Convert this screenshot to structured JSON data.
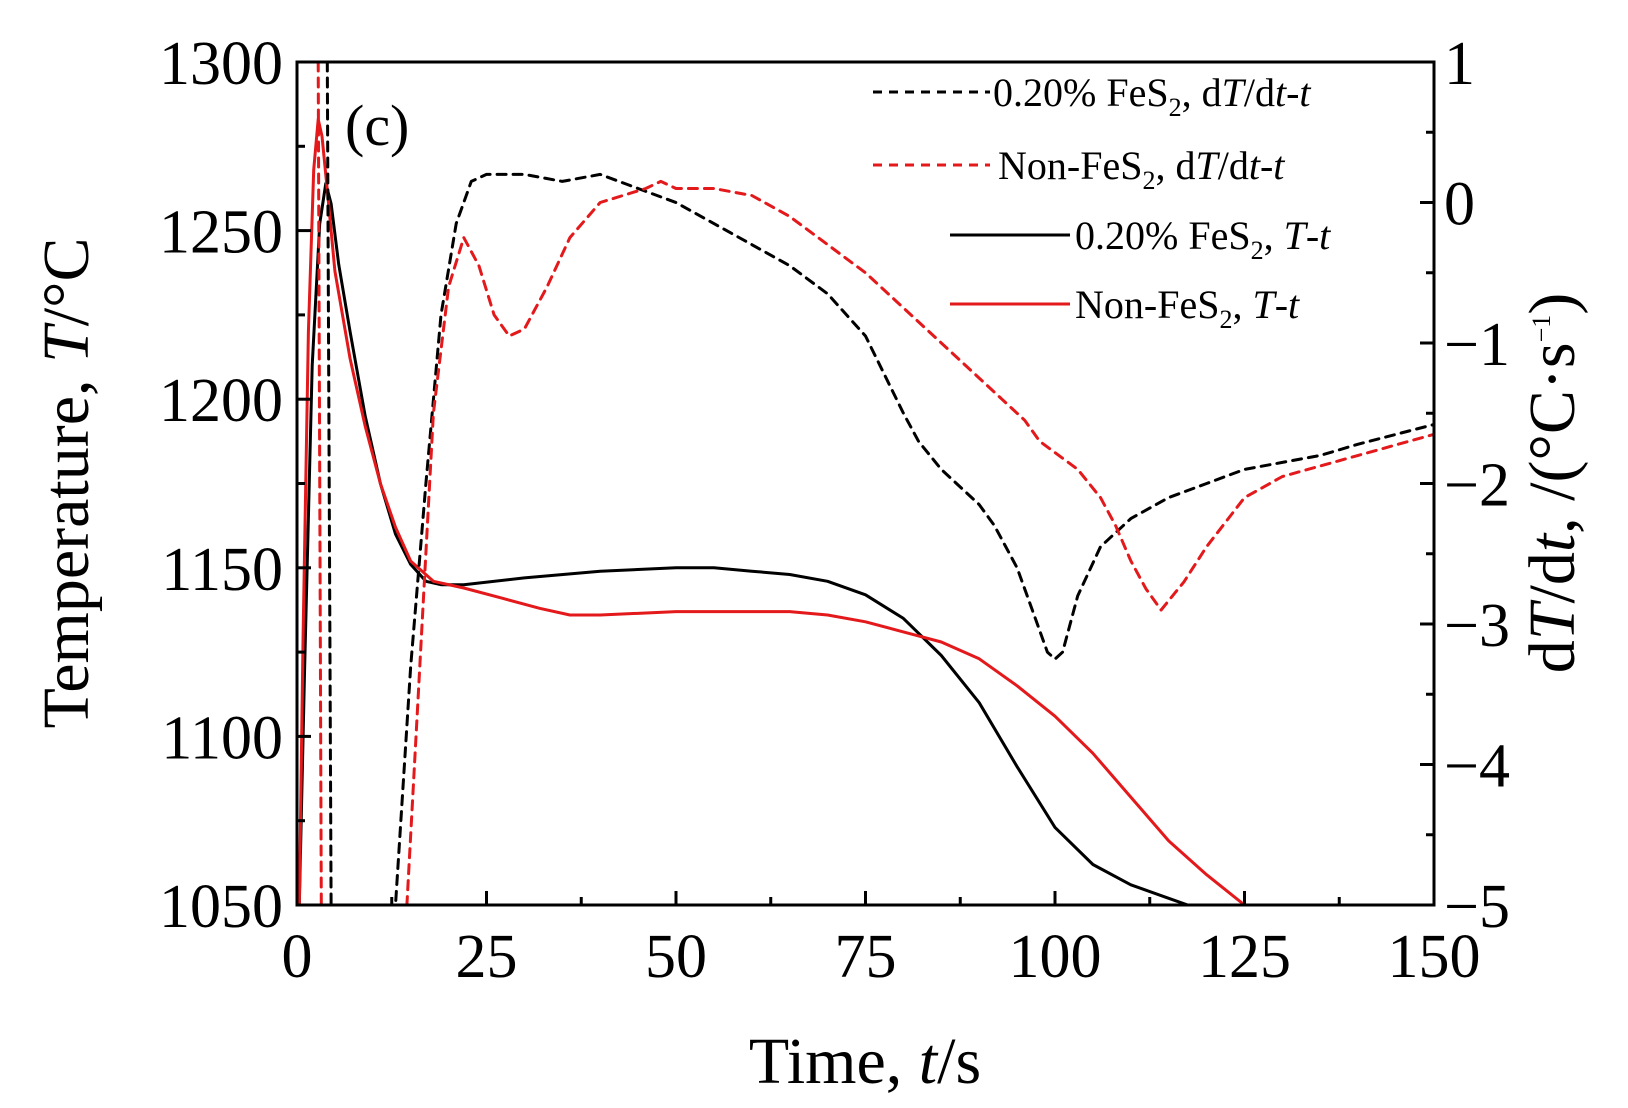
{
  "chart_data": {
    "type": "line",
    "panel_label": "(c)",
    "x_axis": {
      "label_prefix": "Time, ",
      "label_var": "t",
      "label_suffix": "/s",
      "range": [
        0,
        150
      ],
      "ticks": [
        0,
        25,
        50,
        75,
        100,
        125,
        150
      ],
      "tick_labels": [
        "0",
        "25",
        "50",
        "75",
        "100",
        "125",
        "150"
      ]
    },
    "y_left": {
      "label_prefix": "Temperature, ",
      "label_var": "T",
      "label_suffix": "/°C",
      "range": [
        1050,
        1300
      ],
      "ticks": [
        1050,
        1100,
        1150,
        1200,
        1250,
        1300
      ],
      "tick_labels": [
        "1050",
        "1100",
        "1150",
        "1200",
        "1250",
        "1300"
      ]
    },
    "y_right": {
      "label_prefix": "d",
      "label_var": "T",
      "label_mid": "/d",
      "label_var2": "t",
      "label_unit_open": ", /(°C·s",
      "label_sup": "−1",
      "label_close": ")",
      "range": [
        -5,
        1
      ],
      "ticks": [
        -5,
        -4,
        -3,
        -2,
        -1,
        0,
        1
      ],
      "tick_labels": [
        "−5",
        "−4",
        "−3",
        "−2",
        "−1",
        "0",
        "1"
      ]
    },
    "legend": [
      {
        "id": "fes2_dtdt",
        "t1": "0.20% FeS",
        "sub": "2",
        "t2": ", d",
        "i1": "T",
        "t3": "/d",
        "i2": "t",
        "t4": "-",
        "i3": "t",
        "color": "#000000",
        "dash": true
      },
      {
        "id": "non_dtdt",
        "t1": "Non-FeS",
        "sub": "2",
        "t2": ", d",
        "i1": "T",
        "t3": "/d",
        "i2": "t",
        "t4": "-",
        "i3": "t",
        "color": "#e3191b",
        "dash": true
      },
      {
        "id": "fes2_T",
        "t1": "0.20% FeS",
        "sub": "2",
        "t2": ", ",
        "i1": "T",
        "t3": "-",
        "i2": "t",
        "t4": "",
        "i3": "",
        "color": "#000000",
        "dash": false
      },
      {
        "id": "non_T",
        "t1": "Non-FeS",
        "sub": "2",
        "t2": ", ",
        "i1": "T",
        "t3": "-",
        "i2": "t",
        "t4": "",
        "i3": "",
        "color": "#e3191b",
        "dash": false
      }
    ],
    "series": [
      {
        "name": "0.20% FeS2, T-t",
        "axis": "left",
        "color": "#000000",
        "dash": false,
        "x": [
          0.3,
          1,
          2,
          3,
          3.8,
          4.5,
          5.5,
          7,
          9,
          11,
          13,
          15,
          17,
          19,
          22,
          30,
          40,
          50,
          55,
          60,
          65,
          70,
          75,
          80,
          85,
          90,
          95,
          100,
          105,
          110,
          115,
          117.5
        ],
        "y": [
          1050,
          1120,
          1210,
          1252,
          1264,
          1258,
          1240,
          1220,
          1195,
          1175,
          1160,
          1151,
          1146,
          1145,
          1145,
          1147,
          1149,
          1150,
          1150,
          1149,
          1148,
          1146,
          1142,
          1135,
          1124,
          1110,
          1091,
          1073,
          1062,
          1056,
          1052,
          1050
        ]
      },
      {
        "name": "Non-FeS2, T-t",
        "axis": "left",
        "color": "#e3191b",
        "dash": false,
        "x": [
          0.3,
          0.8,
          1.5,
          2.2,
          2.8,
          3.3,
          4,
          5,
          7,
          9,
          11,
          13,
          15,
          18,
          22,
          27,
          32,
          36,
          40,
          50,
          60,
          65,
          70,
          75,
          80,
          85,
          90,
          95,
          100,
          105,
          110,
          115,
          120,
          125
        ],
        "y": [
          1050,
          1130,
          1220,
          1268,
          1283,
          1278,
          1262,
          1238,
          1212,
          1192,
          1175,
          1162,
          1152,
          1146,
          1144,
          1141,
          1138,
          1136,
          1136,
          1137,
          1137,
          1137,
          1136,
          1134,
          1131,
          1128,
          1123,
          1115,
          1106,
          1095,
          1082,
          1069,
          1059,
          1050
        ]
      },
      {
        "name": "0.20% FeS2, dT/dt-t",
        "axis": "right",
        "color": "#000000",
        "dash": true,
        "x": [
          4.0,
          4.5,
          13.0,
          15,
          17,
          19,
          21,
          23,
          25,
          30,
          35,
          40,
          45,
          50,
          55,
          60,
          65,
          70,
          75,
          80,
          82,
          85,
          88,
          90,
          92,
          95,
          97,
          99,
          100,
          101,
          103,
          106,
          110,
          115,
          120,
          125,
          130,
          135,
          140,
          145,
          150
        ],
        "y": [
          1,
          -5,
          -5,
          -3.3,
          -2.0,
          -0.8,
          -0.15,
          0.15,
          0.2,
          0.2,
          0.15,
          0.2,
          0.1,
          0.0,
          -0.15,
          -0.3,
          -0.45,
          -0.65,
          -0.95,
          -1.5,
          -1.7,
          -1.9,
          -2.05,
          -2.15,
          -2.3,
          -2.6,
          -2.9,
          -3.2,
          -3.25,
          -3.2,
          -2.8,
          -2.45,
          -2.25,
          -2.1,
          -2.0,
          -1.9,
          -1.85,
          -1.8,
          -1.72,
          -1.65,
          -1.58
        ]
      },
      {
        "name": "Non-FeS2, dT/dt-t",
        "axis": "right",
        "color": "#e3191b",
        "dash": true,
        "x": [
          2.8,
          3.2,
          14.5,
          16,
          18,
          20,
          22,
          24,
          26,
          28,
          30,
          33,
          36,
          40,
          43,
          46,
          48,
          50,
          55,
          60,
          65,
          70,
          75,
          80,
          85,
          90,
          93,
          96,
          98,
          100,
          103,
          106,
          108,
          110,
          112,
          114,
          117,
          120,
          125,
          130,
          140,
          150
        ],
        "y": [
          1,
          -5,
          -5,
          -3.5,
          -1.5,
          -0.6,
          -0.25,
          -0.45,
          -0.8,
          -0.95,
          -0.9,
          -0.6,
          -0.25,
          0.0,
          0.05,
          0.1,
          0.15,
          0.1,
          0.1,
          0.05,
          -0.1,
          -0.3,
          -0.5,
          -0.75,
          -1.0,
          -1.25,
          -1.4,
          -1.55,
          -1.7,
          -1.78,
          -1.9,
          -2.1,
          -2.3,
          -2.55,
          -2.75,
          -2.9,
          -2.7,
          -2.45,
          -2.1,
          -1.95,
          -1.8,
          -1.65
        ]
      }
    ]
  }
}
